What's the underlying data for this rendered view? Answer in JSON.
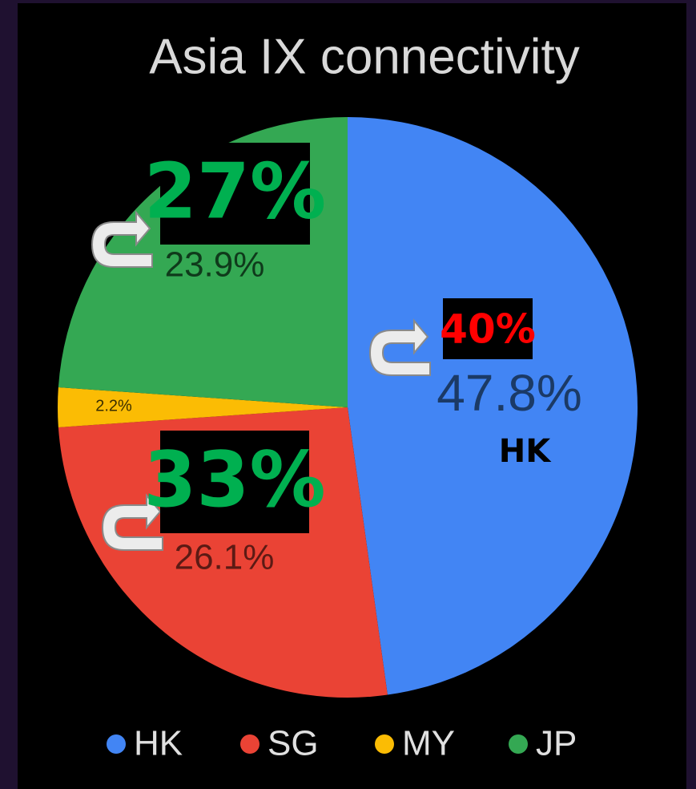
{
  "chart_data": {
    "type": "pie",
    "title": "Asia IX connectivity",
    "categories": [
      "HK",
      "SG",
      "MY",
      "JP"
    ],
    "values": [
      47.8,
      26.1,
      2.2,
      23.9
    ],
    "value_labels": [
      "47.8%",
      "26.1%",
      "2.2%",
      "23.9%"
    ],
    "colors": [
      "#4285f4",
      "#ea4335",
      "#fbbc04",
      "#34a853"
    ],
    "legend": "bottom",
    "annotations": [
      "27%",
      "40%",
      "33%",
      "HK"
    ]
  }
}
